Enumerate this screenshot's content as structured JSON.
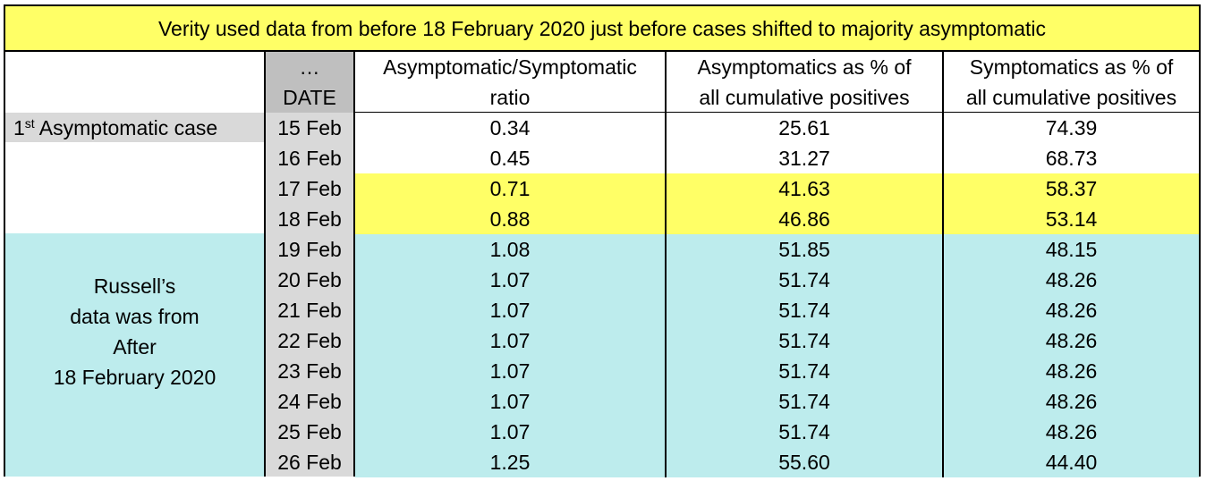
{
  "banner": "Verity used data from before 18 February 2020 just before cases shifted to majority asymptomatic",
  "labels": {
    "first_case_num": "1",
    "first_case_sup": "st",
    "first_case_text": " Asymptomatic case",
    "russell_lines": [
      "Russell’s",
      "data was from",
      "After",
      "18 February 2020"
    ]
  },
  "date_header": {
    "line1": "…",
    "line2": "DATE"
  },
  "headers": [
    {
      "line1": "Asymptomatic/Symptomatic",
      "line2": "ratio"
    },
    {
      "line1": "Asymptomatics as % of",
      "line2": "all cumulative positives"
    },
    {
      "line1": "Symptomatics as % of",
      "line2": "all cumulative positives"
    }
  ],
  "rows": [
    {
      "date": "15 Feb",
      "ratio": "0.34",
      "asym": "25.61",
      "sym": "74.39",
      "highlight": "white"
    },
    {
      "date": "16 Feb",
      "ratio": "0.45",
      "asym": "31.27",
      "sym": "68.73",
      "highlight": "white"
    },
    {
      "date": "17 Feb",
      "ratio": "0.71",
      "asym": "41.63",
      "sym": "58.37",
      "highlight": "yellow"
    },
    {
      "date": "18 Feb",
      "ratio": "0.88",
      "asym": "46.86",
      "sym": "53.14",
      "highlight": "yellow"
    },
    {
      "date": "19 Feb",
      "ratio": "1.08",
      "asym": "51.85",
      "sym": "48.15",
      "highlight": "cyan"
    },
    {
      "date": "20 Feb",
      "ratio": "1.07",
      "asym": "51.74",
      "sym": "48.26",
      "highlight": "cyan"
    },
    {
      "date": "21 Feb",
      "ratio": "1.07",
      "asym": "51.74",
      "sym": "48.26",
      "highlight": "cyan"
    },
    {
      "date": "22 Feb",
      "ratio": "1.07",
      "asym": "51.74",
      "sym": "48.26",
      "highlight": "cyan"
    },
    {
      "date": "23 Feb",
      "ratio": "1.07",
      "asym": "51.74",
      "sym": "48.26",
      "highlight": "cyan"
    },
    {
      "date": "24 Feb",
      "ratio": "1.07",
      "asym": "51.74",
      "sym": "48.26",
      "highlight": "cyan"
    },
    {
      "date": "25 Feb",
      "ratio": "1.07",
      "asym": "51.74",
      "sym": "48.26",
      "highlight": "cyan"
    },
    {
      "date": "26 Feb",
      "ratio": "1.25",
      "asym": "55.60",
      "sym": "44.40",
      "highlight": "cyan"
    }
  ],
  "colors": {
    "yellow": "#ffff66",
    "cyan": "#bdeced",
    "date_column": "#d9d9d9",
    "date_header": "#bfbfbf"
  }
}
